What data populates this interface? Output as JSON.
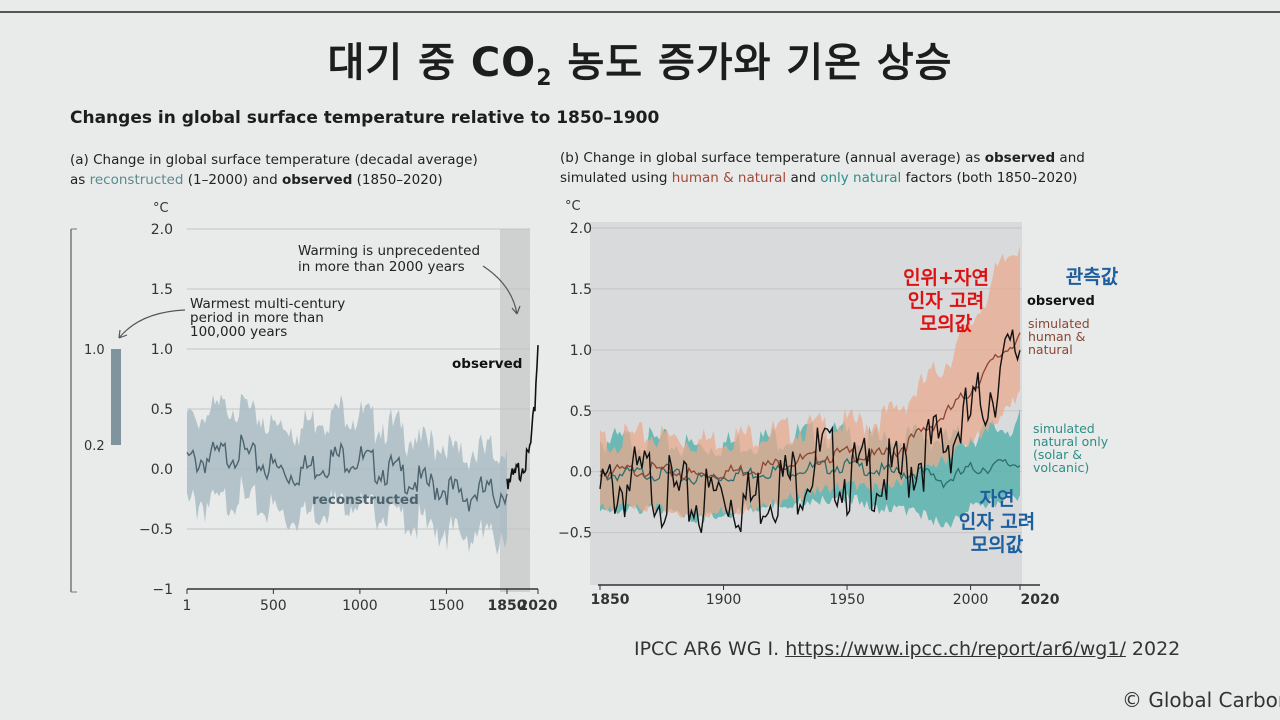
{
  "slide": {
    "title_before": "대기 중 CO",
    "title_sub": "2",
    "title_after": " 농도 증가와 기온 상승",
    "heading": "Changes in global surface temperature relative to 1850–1900"
  },
  "panel_a": {
    "caption_line1": "(a) Change in global surface temperature (decadal average)",
    "caption_as": "as ",
    "caption_reconstructed": "reconstructed",
    "caption_mid": " (1–2000) and ",
    "caption_observed": "observed",
    "caption_end": " (1850–2020)"
  },
  "panel_b": {
    "caption_line1_pre": "(b) Change in global surface temperature (annual average) as ",
    "caption_line1_obs": "observed",
    "caption_line1_post": " and",
    "caption_line2_pre": "simulated using ",
    "caption_line2_hn": "human & natural",
    "caption_line2_mid": " and ",
    "caption_line2_nat": "only natural",
    "caption_line2_post": " factors (both 1850–2020)"
  },
  "credit": {
    "prefix": "IPCC AR6 WG I. ",
    "link": "https://www.ipcc.ch/report/ar6/wg1/",
    "year": " 2022"
  },
  "copyright": "© Global Carbon",
  "chart_data": [
    {
      "type": "line",
      "panel": "a",
      "ylabel": "°C",
      "ylim": [
        -1,
        2.0
      ],
      "y_ticks": [
        "2.0",
        "1.5",
        "1.0",
        "0.5",
        "0.0",
        "−0.5",
        "−1"
      ],
      "x_ticks": [
        "1",
        "500",
        "1000",
        "1500",
        "1850",
        "2020"
      ],
      "x_tick_values": [
        1,
        500,
        1000,
        1500,
        1850,
        2020
      ],
      "scale_bar": {
        "labels": [
          "1.0",
          "0.2"
        ],
        "range": [
          0.2,
          1.0
        ]
      },
      "annotations": {
        "warmest_multi_century": "Warmest multi-century\nperiod in more than\n100,000 years",
        "unprecedented": "Warming is unprecedented\nin more than 2000 years",
        "observed": "observed",
        "reconstructed": "reconstructed"
      },
      "series": [
        {
          "name": "reconstructed",
          "color": "#4d6470",
          "x": [
            1,
            100,
            200,
            300,
            400,
            500,
            600,
            700,
            800,
            900,
            1000,
            1100,
            1200,
            1300,
            1400,
            1500,
            1600,
            1700,
            1800,
            1850
          ],
          "values": [
            0.1,
            0.12,
            0.15,
            0.2,
            0.1,
            0.05,
            0.0,
            0.05,
            0.1,
            0.15,
            0.12,
            0.05,
            0.02,
            -0.05,
            -0.1,
            -0.12,
            -0.2,
            -0.15,
            -0.18,
            -0.1
          ],
          "band": [
            0.32,
            0.32,
            0.32,
            0.32,
            0.32,
            0.32,
            0.32,
            0.32,
            0.32,
            0.32,
            0.3,
            0.3,
            0.3,
            0.3,
            0.3,
            0.3,
            0.3,
            0.3,
            0.3,
            0.3
          ]
        },
        {
          "name": "observed",
          "color": "#111111",
          "x": [
            1850,
            1880,
            1900,
            1920,
            1940,
            1960,
            1980,
            2000,
            2010,
            2020
          ],
          "values": [
            0.0,
            -0.05,
            0.0,
            0.05,
            0.15,
            0.1,
            0.25,
            0.5,
            0.85,
            1.1
          ]
        }
      ]
    },
    {
      "type": "line",
      "panel": "b",
      "ylabel": "°C",
      "ylim": [
        -0.93,
        2.0
      ],
      "xlim": [
        1850,
        2020
      ],
      "y_ticks": [
        "2.0",
        "1.5",
        "1.0",
        "0.5",
        "0.0",
        "−0.5"
      ],
      "y_tick_values": [
        2.0,
        1.5,
        1.0,
        0.5,
        0.0,
        -0.5
      ],
      "x_ticks": [
        "1850",
        "1900",
        "1950",
        "2000",
        "2020"
      ],
      "x_tick_values": [
        1850,
        1900,
        1950,
        2000,
        2020
      ],
      "legend": {
        "observed": "observed",
        "simulated_hn": "simulated\nhuman &\nnatural",
        "simulated_nat": "simulated\nnatural only\n(solar &\nvolcanic)"
      },
      "korean_labels": {
        "human_natural": "인위+자연\n인자 고려\n모의값",
        "observed": "관측값",
        "natural": "자연\n인자 고려\n모의값"
      },
      "series": [
        {
          "name": "observed",
          "color": "#111111",
          "x": [
            1850,
            1860,
            1870,
            1880,
            1890,
            1900,
            1910,
            1920,
            1930,
            1940,
            1950,
            1960,
            1970,
            1980,
            1990,
            2000,
            2010,
            2020
          ],
          "values": [
            0.0,
            0.05,
            0.1,
            -0.05,
            -0.1,
            0.0,
            -0.1,
            0.05,
            0.1,
            0.3,
            0.1,
            0.15,
            0.1,
            0.3,
            0.4,
            0.6,
            0.9,
            1.2
          ]
        },
        {
          "name": "simulated human & natural",
          "color": "#8a4632",
          "x": [
            1850,
            1870,
            1890,
            1910,
            1930,
            1950,
            1960,
            1970,
            1980,
            1990,
            2000,
            2010,
            2020
          ],
          "values": [
            0.02,
            0.05,
            0.0,
            0.05,
            0.12,
            0.18,
            0.15,
            0.2,
            0.35,
            0.5,
            0.7,
            0.95,
            1.15
          ],
          "lower": [
            -0.25,
            -0.25,
            -0.3,
            -0.25,
            -0.15,
            -0.05,
            -0.1,
            -0.05,
            0.05,
            0.15,
            0.3,
            0.45,
            0.7
          ],
          "upper": [
            0.25,
            0.3,
            0.25,
            0.3,
            0.35,
            0.4,
            0.4,
            0.5,
            0.7,
            0.9,
            1.2,
            1.6,
            1.9
          ]
        },
        {
          "name": "simulated natural only",
          "color": "#2e6f6c",
          "x": [
            1850,
            1870,
            1890,
            1910,
            1930,
            1950,
            1960,
            1970,
            1980,
            1990,
            2000,
            2010,
            2020
          ],
          "values": [
            0.0,
            0.02,
            -0.03,
            0.02,
            0.05,
            0.08,
            0.05,
            0.02,
            0.02,
            -0.05,
            0.05,
            0.08,
            0.1
          ],
          "lower": [
            -0.25,
            -0.25,
            -0.35,
            -0.25,
            -0.2,
            -0.15,
            -0.25,
            -0.25,
            -0.3,
            -0.4,
            -0.25,
            -0.2,
            -0.15
          ],
          "upper": [
            0.25,
            0.25,
            0.2,
            0.25,
            0.3,
            0.3,
            0.25,
            0.25,
            0.3,
            0.25,
            0.3,
            0.35,
            0.4
          ]
        }
      ]
    }
  ]
}
